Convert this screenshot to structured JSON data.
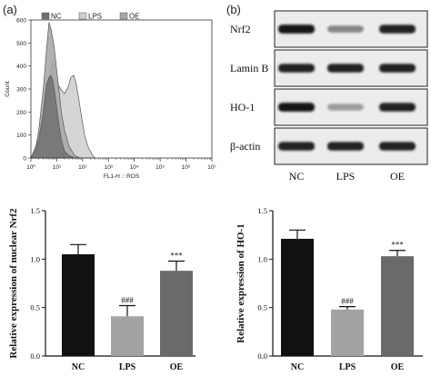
{
  "panels": {
    "a": "(a)",
    "b": "(b)"
  },
  "chart_data": [
    {
      "type": "area",
      "panel": "(a)",
      "xlabel": "FL1-H :: ROS",
      "ylabel": "Count",
      "xscale": "log",
      "xlim": [
        1,
        10000000
      ],
      "ylim": [
        0,
        600
      ],
      "xticks": [
        1,
        10,
        100,
        1000,
        10000,
        100000,
        1000000,
        10000000
      ],
      "xtick_labels": [
        "10⁰",
        "10¹",
        "10²",
        "10³",
        "10⁴",
        "10⁵",
        "10⁶",
        "10⁷"
      ],
      "yticks": [
        0,
        100,
        200,
        300,
        400,
        500,
        600
      ],
      "ytick_labels": [
        "0",
        "100",
        "200",
        "300",
        "400",
        "500",
        "600"
      ],
      "legend_position": "top",
      "series": [
        {
          "name": "LPS",
          "color": "#d0d0d0",
          "x": [
            1,
            2,
            3,
            4,
            5,
            6,
            7,
            8,
            10,
            14,
            20,
            28,
            35,
            45,
            55,
            70,
            90,
            120,
            160,
            220,
            300
          ],
          "y": [
            0,
            60,
            150,
            240,
            320,
            380,
            420,
            390,
            330,
            300,
            280,
            310,
            350,
            360,
            330,
            260,
            180,
            100,
            50,
            20,
            0
          ]
        },
        {
          "name": "OE",
          "color": "#a8a8a8",
          "x": [
            1,
            1.5,
            2,
            3,
            4,
            5,
            6,
            7,
            8,
            10,
            12,
            15,
            20,
            30,
            50,
            80
          ],
          "y": [
            0,
            40,
            120,
            300,
            470,
            590,
            560,
            520,
            480,
            380,
            300,
            200,
            120,
            50,
            10,
            0
          ]
        },
        {
          "name": "NC",
          "color": "#707070",
          "x": [
            1,
            2,
            3,
            4,
            5,
            6,
            7,
            8,
            10,
            12,
            15,
            20,
            30,
            50
          ],
          "y": [
            0,
            80,
            200,
            320,
            350,
            360,
            340,
            300,
            220,
            150,
            80,
            30,
            10,
            0
          ]
        }
      ]
    },
    {
      "type": "bar",
      "categories": [
        "NC",
        "LPS",
        "OE"
      ],
      "values": [
        1.05,
        0.41,
        0.88
      ],
      "errors": [
        0.1,
        0.11,
        0.1
      ],
      "annotations": [
        "",
        "###",
        "***"
      ],
      "colors": [
        "#111111",
        "#a3a3a3",
        "#6a6a6a"
      ],
      "ylabel": "Relative expression of nuclear Nrf2",
      "ylim": [
        0,
        1.5
      ],
      "yticks": [
        0,
        0.5,
        1.0,
        1.5
      ],
      "ytick_labels": [
        "0.0",
        "0.5",
        "1.0",
        "1.5"
      ]
    },
    {
      "type": "bar",
      "categories": [
        "NC",
        "LPS",
        "OE"
      ],
      "values": [
        1.21,
        0.48,
        1.03
      ],
      "errors": [
        0.09,
        0.03,
        0.06
      ],
      "annotations": [
        "",
        "###",
        "***"
      ],
      "colors": [
        "#111111",
        "#a3a3a3",
        "#6a6a6a"
      ],
      "ylabel": "Relative expression of HO-1",
      "ylim": [
        0,
        1.5
      ],
      "yticks": [
        0,
        0.5,
        1.0,
        1.5
      ],
      "ytick_labels": [
        "0.0",
        "0.5",
        "1.0",
        "1.5"
      ]
    }
  ],
  "western_blot": {
    "rows": [
      {
        "label": "Nrf2",
        "intensity": [
          0.95,
          0.45,
          0.9
        ]
      },
      {
        "label": "Lamin B",
        "intensity": [
          0.9,
          0.9,
          0.9
        ]
      },
      {
        "label": "HO-1",
        "intensity": [
          0.95,
          0.35,
          0.9
        ]
      },
      {
        "label": "β-actin",
        "intensity": [
          0.9,
          0.9,
          0.9
        ]
      }
    ],
    "lanes": [
      "NC",
      "LPS",
      "OE"
    ]
  }
}
